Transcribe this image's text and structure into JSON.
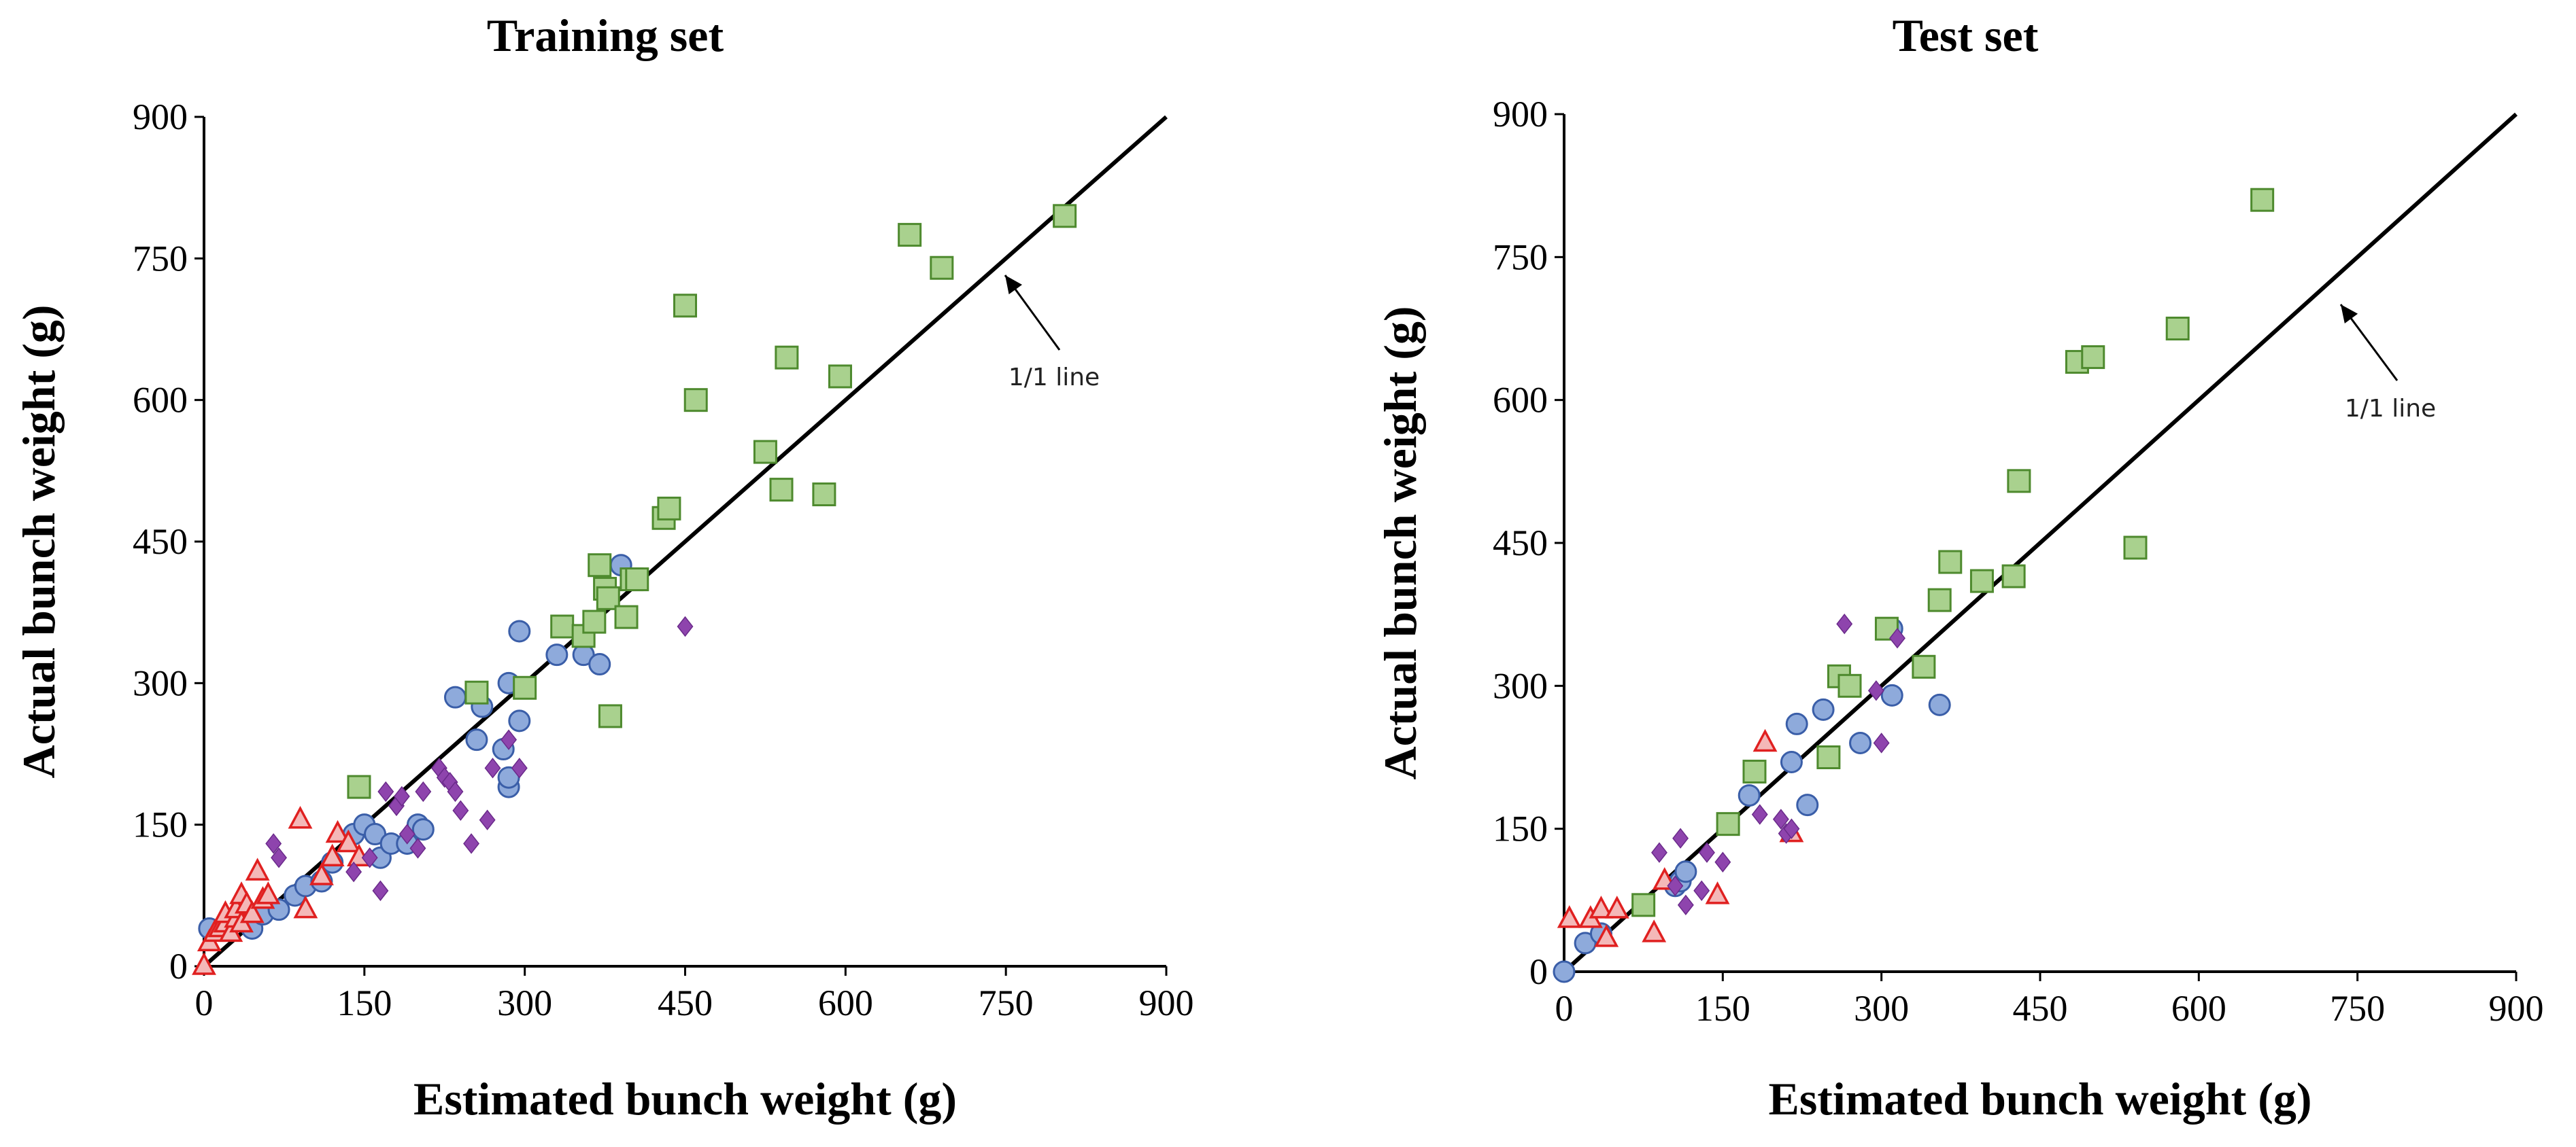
{
  "chart_data": [
    {
      "type": "scatter",
      "title": "Training set",
      "xlabel": "Estimated bunch weight (g)",
      "ylabel": "Actual bunch weight (g)",
      "xlim": [
        0,
        900
      ],
      "ylim": [
        0,
        900
      ],
      "xticks": [
        "0",
        "150",
        "300",
        "450",
        "600",
        "750",
        "900"
      ],
      "yticks": [
        "0",
        "150",
        "300",
        "450",
        "600",
        "750",
        "900"
      ],
      "annotation": "1/1 line",
      "reference_line": {
        "name": "1/1 line",
        "from": [
          0,
          0
        ],
        "to": [
          900,
          900
        ]
      },
      "series": [
        {
          "name": "circles",
          "marker": "circle",
          "points": [
            [
              5,
              40
            ],
            [
              25,
              45
            ],
            [
              40,
              50
            ],
            [
              45,
              40
            ],
            [
              55,
              55
            ],
            [
              70,
              60
            ],
            [
              85,
              75
            ],
            [
              95,
              85
            ],
            [
              110,
              90
            ],
            [
              120,
              110
            ],
            [
              140,
              140
            ],
            [
              150,
              150
            ],
            [
              160,
              140
            ],
            [
              165,
              115
            ],
            [
              175,
              130
            ],
            [
              190,
              130
            ],
            [
              200,
              150
            ],
            [
              205,
              145
            ],
            [
              235,
              285
            ],
            [
              255,
              240
            ],
            [
              260,
              275
            ],
            [
              280,
              230
            ],
            [
              285,
              190
            ],
            [
              285,
              200
            ],
            [
              285,
              300
            ],
            [
              295,
              260
            ],
            [
              295,
              355
            ],
            [
              330,
              330
            ],
            [
              355,
              330
            ],
            [
              370,
              320
            ],
            [
              390,
              425
            ]
          ]
        },
        {
          "name": "squares",
          "marker": "square",
          "points": [
            [
              145,
              190
            ],
            [
              255,
              290
            ],
            [
              300,
              295
            ],
            [
              335,
              360
            ],
            [
              355,
              350
            ],
            [
              365,
              365
            ],
            [
              370,
              425
            ],
            [
              375,
              400
            ],
            [
              378,
              390
            ],
            [
              380,
              265
            ],
            [
              395,
              370
            ],
            [
              400,
              410
            ],
            [
              405,
              410
            ],
            [
              430,
              475
            ],
            [
              435,
              485
            ],
            [
              450,
              700
            ],
            [
              460,
              600
            ],
            [
              525,
              545
            ],
            [
              540,
              505
            ],
            [
              545,
              645
            ],
            [
              580,
              500
            ],
            [
              595,
              625
            ],
            [
              660,
              775
            ],
            [
              690,
              740
            ],
            [
              805,
              795
            ]
          ]
        },
        {
          "name": "triangles",
          "marker": "triangle",
          "points": [
            [
              0,
              0
            ],
            [
              5,
              25
            ],
            [
              10,
              35
            ],
            [
              15,
              40
            ],
            [
              20,
              45
            ],
            [
              20,
              55
            ],
            [
              25,
              35
            ],
            [
              30,
              50
            ],
            [
              30,
              60
            ],
            [
              35,
              45
            ],
            [
              35,
              75
            ],
            [
              40,
              65
            ],
            [
              45,
              55
            ],
            [
              50,
              100
            ],
            [
              55,
              70
            ],
            [
              60,
              75
            ],
            [
              90,
              155
            ],
            [
              95,
              60
            ],
            [
              110,
              95
            ],
            [
              120,
              115
            ],
            [
              125,
              140
            ],
            [
              135,
              130
            ],
            [
              145,
              115
            ]
          ]
        },
        {
          "name": "diamonds",
          "marker": "diamond",
          "points": [
            [
              65,
              130
            ],
            [
              70,
              115
            ],
            [
              140,
              100
            ],
            [
              155,
              115
            ],
            [
              165,
              80
            ],
            [
              170,
              185
            ],
            [
              180,
              170
            ],
            [
              185,
              180
            ],
            [
              190,
              140
            ],
            [
              200,
              125
            ],
            [
              205,
              185
            ],
            [
              220,
              210
            ],
            [
              225,
              200
            ],
            [
              230,
              195
            ],
            [
              235,
              185
            ],
            [
              240,
              165
            ],
            [
              250,
              130
            ],
            [
              265,
              155
            ],
            [
              270,
              210
            ],
            [
              285,
              240
            ],
            [
              295,
              210
            ],
            [
              450,
              360
            ]
          ]
        }
      ]
    },
    {
      "type": "scatter",
      "title": "Test set",
      "xlabel": "Estimated bunch weight (g)",
      "ylabel": "Actual bunch weight (g)",
      "xlim": [
        0,
        900
      ],
      "ylim": [
        0,
        900
      ],
      "xticks": [
        "0",
        "150",
        "300",
        "450",
        "600",
        "750",
        "900"
      ],
      "yticks": [
        "0",
        "150",
        "300",
        "450",
        "600",
        "750",
        "900"
      ],
      "annotation": "1/1 line",
      "reference_line": {
        "name": "1/1 line",
        "from": [
          0,
          0
        ],
        "to": [
          900,
          900
        ]
      },
      "series": [
        {
          "name": "circles",
          "marker": "circle",
          "points": [
            [
              0,
              0
            ],
            [
              20,
              30
            ],
            [
              35,
              40
            ],
            [
              105,
              90
            ],
            [
              110,
              95
            ],
            [
              115,
              105
            ],
            [
              175,
              185
            ],
            [
              215,
              220
            ],
            [
              220,
              260
            ],
            [
              230,
              175
            ],
            [
              245,
              275
            ],
            [
              280,
              240
            ],
            [
              310,
              360
            ],
            [
              310,
              290
            ],
            [
              355,
              280
            ]
          ]
        },
        {
          "name": "squares",
          "marker": "square",
          "points": [
            [
              75,
              70
            ],
            [
              155,
              155
            ],
            [
              180,
              210
            ],
            [
              250,
              225
            ],
            [
              260,
              310
            ],
            [
              270,
              300
            ],
            [
              305,
              360
            ],
            [
              340,
              320
            ],
            [
              355,
              390
            ],
            [
              365,
              430
            ],
            [
              395,
              410
            ],
            [
              425,
              415
            ],
            [
              430,
              515
            ],
            [
              485,
              640
            ],
            [
              500,
              645
            ],
            [
              540,
              445
            ],
            [
              580,
              675
            ],
            [
              660,
              810
            ]
          ]
        },
        {
          "name": "triangles",
          "marker": "triangle",
          "points": [
            [
              5,
              55
            ],
            [
              25,
              55
            ],
            [
              35,
              65
            ],
            [
              40,
              35
            ],
            [
              50,
              65
            ],
            [
              85,
              40
            ],
            [
              95,
              95
            ],
            [
              145,
              80
            ],
            [
              190,
              240
            ],
            [
              215,
              145
            ]
          ]
        },
        {
          "name": "diamonds",
          "marker": "diamond",
          "points": [
            [
              90,
              125
            ],
            [
              105,
              90
            ],
            [
              110,
              140
            ],
            [
              115,
              70
            ],
            [
              130,
              85
            ],
            [
              135,
              125
            ],
            [
              150,
              115
            ],
            [
              185,
              165
            ],
            [
              205,
              160
            ],
            [
              210,
              145
            ],
            [
              215,
              150
            ],
            [
              265,
              365
            ],
            [
              295,
              295
            ],
            [
              300,
              240
            ],
            [
              315,
              350
            ]
          ]
        }
      ]
    }
  ]
}
